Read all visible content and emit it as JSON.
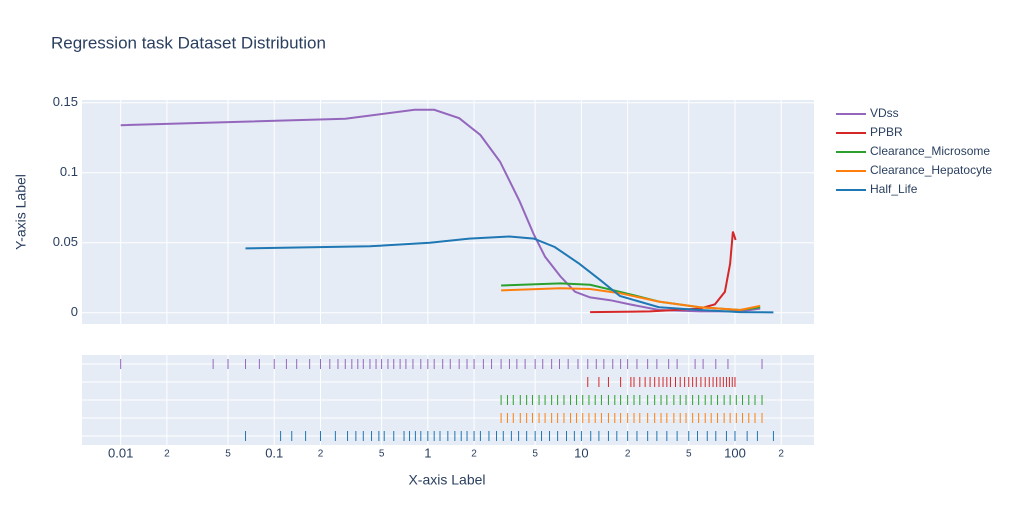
{
  "chart_data": {
    "type": "line",
    "title": "Regression task Dataset Distribution",
    "x_label": "X-axis Label",
    "y_label": "Y-axis Label",
    "log_x": true,
    "grid": true,
    "legend_position": "right",
    "xlim": [
      0.0056,
      327
    ],
    "xticks": [
      0.01,
      {
        "value": 0.02,
        "label": "2"
      },
      {
        "value": 0.05,
        "label": "5"
      },
      0.1,
      {
        "value": 0.2,
        "label": "2"
      },
      {
        "value": 0.5,
        "label": "5"
      },
      1,
      {
        "value": 2,
        "label": "2"
      },
      {
        "value": 5,
        "label": "5"
      },
      10,
      {
        "value": 20,
        "label": "2"
      },
      {
        "value": 50,
        "label": "5"
      },
      100,
      {
        "value": 200,
        "label": "2"
      }
    ],
    "ylim": [
      -0.008,
      0.152
    ],
    "yticks": [
      0,
      0.05,
      0.1,
      0.15
    ],
    "series": [
      {
        "name": "VDss",
        "color": "#9467bd",
        "x": [
          0.01,
          0.29,
          0.82,
          1.1,
          1.6,
          2.2,
          2.95,
          3.95,
          4.9,
          5.8,
          7.3,
          9.1,
          11.4,
          15.4,
          20.7,
          32,
          59,
          108,
          146
        ],
        "values": [
          0.134,
          0.1386,
          0.145,
          0.145,
          0.139,
          0.127,
          0.108,
          0.08,
          0.056,
          0.04,
          0.026,
          0.015,
          0.011,
          0.009,
          0.006,
          0.002,
          0.001,
          0.001,
          0.003
        ],
        "rug": [
          0.01,
          0.04,
          0.05,
          0.065,
          0.08,
          0.1,
          0.12,
          0.14,
          0.17,
          0.2,
          0.23,
          0.26,
          0.29,
          0.32,
          0.35,
          0.38,
          0.42,
          0.46,
          0.5,
          0.55,
          0.6,
          0.66,
          0.72,
          0.8,
          0.9,
          1,
          1.1,
          1.25,
          1.4,
          1.6,
          1.8,
          2,
          2.3,
          2.6,
          3,
          3.4,
          3.8,
          4.3,
          5,
          5.6,
          6.4,
          7.2,
          8.2,
          9.5,
          11,
          12.5,
          14,
          16,
          18,
          20,
          23,
          27,
          31,
          37,
          42,
          55,
          62,
          75,
          90,
          150
        ]
      },
      {
        "name": "PPBR",
        "color": "#d62728",
        "x": [
          11.4,
          28,
          59,
          74,
          86,
          93,
          97,
          101
        ],
        "values": [
          0.0005,
          0.001,
          0.003,
          0.006,
          0.015,
          0.035,
          0.058,
          0.052
        ],
        "rug": [
          11,
          13,
          15,
          18,
          21,
          22,
          24,
          26,
          28,
          30,
          32,
          34,
          36,
          38,
          41,
          44,
          47,
          50,
          53,
          56,
          60,
          64,
          68,
          72,
          76,
          80,
          84,
          88,
          92,
          96,
          100
        ]
      },
      {
        "name": "Clearance_Microsome",
        "color": "#2ca02c",
        "x": [
          3,
          7.3,
          11.4,
          17.8,
          32,
          59,
          108,
          146
        ],
        "values": [
          0.0195,
          0.021,
          0.02,
          0.015,
          0.008,
          0.004,
          0.002,
          0.004
        ],
        "rug": [
          3,
          3.3,
          3.6,
          4,
          4.4,
          4.8,
          5.3,
          5.8,
          6.4,
          7,
          7.7,
          8.5,
          9.3,
          10.2,
          11.2,
          12.3,
          13.5,
          15,
          16.5,
          18,
          20,
          22,
          24,
          27,
          30,
          33,
          36,
          40,
          44,
          48,
          53,
          58,
          64,
          70,
          77,
          85,
          93,
          102,
          112,
          123,
          135,
          150
        ]
      },
      {
        "name": "Clearance_Hepatocyte",
        "color": "#ff7f0e",
        "x": [
          3,
          7.3,
          11.4,
          17.8,
          32,
          59,
          108,
          146
        ],
        "values": [
          0.016,
          0.0175,
          0.017,
          0.014,
          0.008,
          0.004,
          0.002,
          0.005
        ],
        "rug": [
          3,
          3.3,
          3.6,
          4,
          4.4,
          4.8,
          5.3,
          5.8,
          6.4,
          7,
          7.7,
          8.5,
          9.3,
          10.2,
          11.2,
          12.3,
          13.5,
          15,
          16.5,
          18,
          20,
          22,
          24,
          27,
          30,
          33,
          36,
          40,
          44,
          48,
          53,
          58,
          64,
          70,
          77,
          85,
          93,
          102,
          112,
          123,
          135,
          150
        ]
      },
      {
        "name": "Half_Life",
        "color": "#1f77b4",
        "x": [
          0.065,
          0.42,
          1.03,
          1.86,
          3.4,
          4.9,
          6.7,
          9.7,
          13.4,
          17.8,
          32,
          59,
          108,
          178
        ],
        "values": [
          0.046,
          0.0475,
          0.05,
          0.053,
          0.0545,
          0.053,
          0.047,
          0.035,
          0.023,
          0.012,
          0.004,
          0.002,
          0.0005,
          0.0003
        ],
        "rug": [
          0.065,
          0.11,
          0.13,
          0.16,
          0.2,
          0.25,
          0.3,
          0.34,
          0.38,
          0.43,
          0.48,
          0.52,
          0.6,
          0.7,
          0.76,
          0.83,
          0.9,
          1,
          1.1,
          1.2,
          1.35,
          1.5,
          1.65,
          1.8,
          2,
          2.2,
          2.5,
          2.8,
          3.1,
          3.5,
          3.9,
          4.4,
          5,
          5.5,
          6.2,
          7,
          8,
          9,
          10,
          11.5,
          13,
          15,
          17,
          20,
          23,
          27,
          31,
          36,
          42,
          50,
          57,
          66,
          75,
          88,
          100,
          120,
          140,
          178
        ]
      }
    ]
  }
}
